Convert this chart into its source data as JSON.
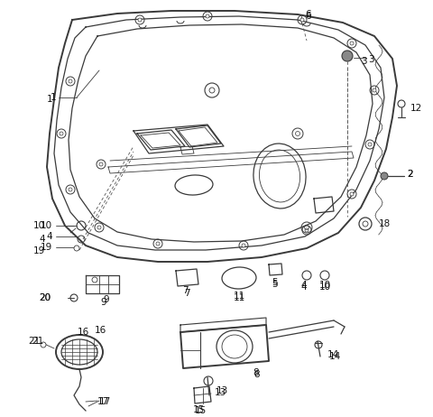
{
  "background_color": "#ffffff",
  "line_color": "#3a3a3a",
  "fig_width": 4.8,
  "fig_height": 4.62,
  "dpi": 100
}
